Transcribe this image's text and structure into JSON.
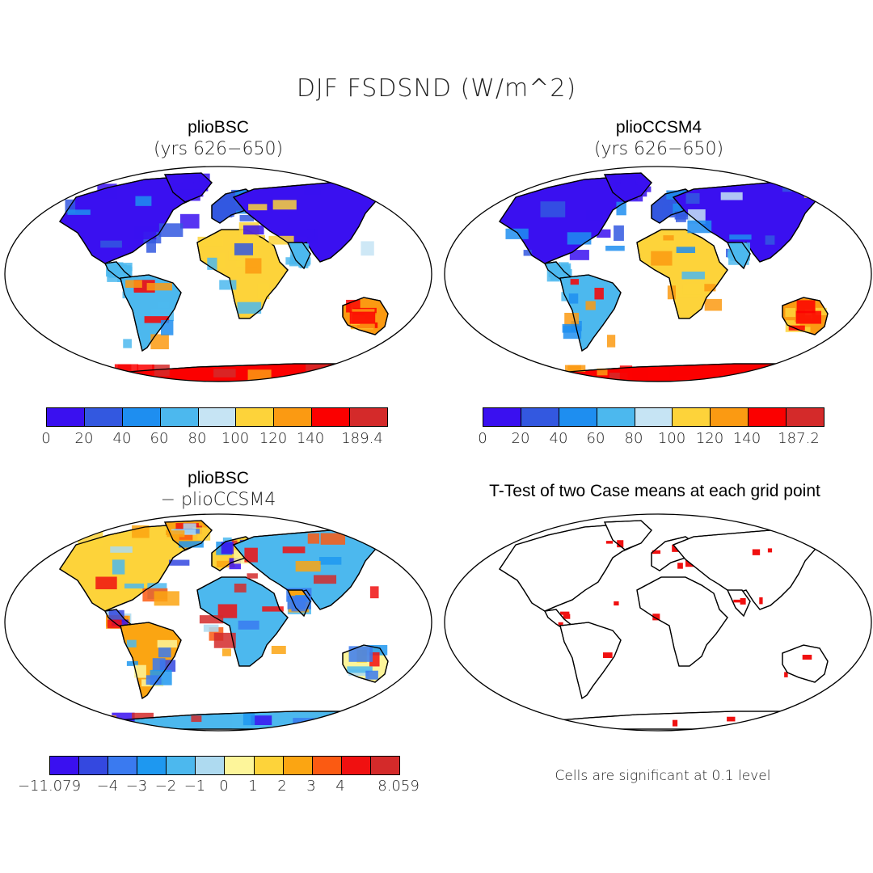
{
  "title": "DJF FSDSND (W/m^2)",
  "panels": {
    "top_left": {
      "title": "plioBSC",
      "subtitle": "(yrs 626−650)",
      "colorbar": {
        "labels": [
          "0",
          "20",
          "40",
          "60",
          "80",
          "100",
          "120",
          "140",
          "189.4"
        ]
      }
    },
    "top_right": {
      "title": "plioCCSM4",
      "subtitle": "(yrs 626−650)",
      "colorbar": {
        "labels": [
          "0",
          "20",
          "40",
          "60",
          "80",
          "100",
          "120",
          "140",
          "187.2"
        ]
      }
    },
    "bottom_left": {
      "title": "plioBSC",
      "subtitle": "− plioCCSM4",
      "colorbar": {
        "labels": [
          "−11.079",
          "−4",
          "−3",
          "−2",
          "−1",
          "0",
          "1",
          "2",
          "3",
          "4",
          "8.059"
        ]
      }
    },
    "bottom_right": {
      "title": "T-Test of two Case means at each grid point",
      "note": "Cells are significant at 0.1 level"
    }
  },
  "colors": {
    "abs_scale": [
      "#3a10f0",
      "#3358e0",
      "#1e8ef0",
      "#4cb8ee",
      "#c6e4f4",
      "#fdd33a",
      "#fb9a12",
      "#fb0000",
      "#d42a2a"
    ],
    "diff_scale": [
      "#3a10f0",
      "#3448e0",
      "#3a7af0",
      "#1e98f0",
      "#4cb8ee",
      "#aedaf0",
      "#fdf59a",
      "#fdd33a",
      "#fba512",
      "#fb5a12",
      "#f01010",
      "#d42a2a"
    ],
    "significance": "#f01010"
  }
}
